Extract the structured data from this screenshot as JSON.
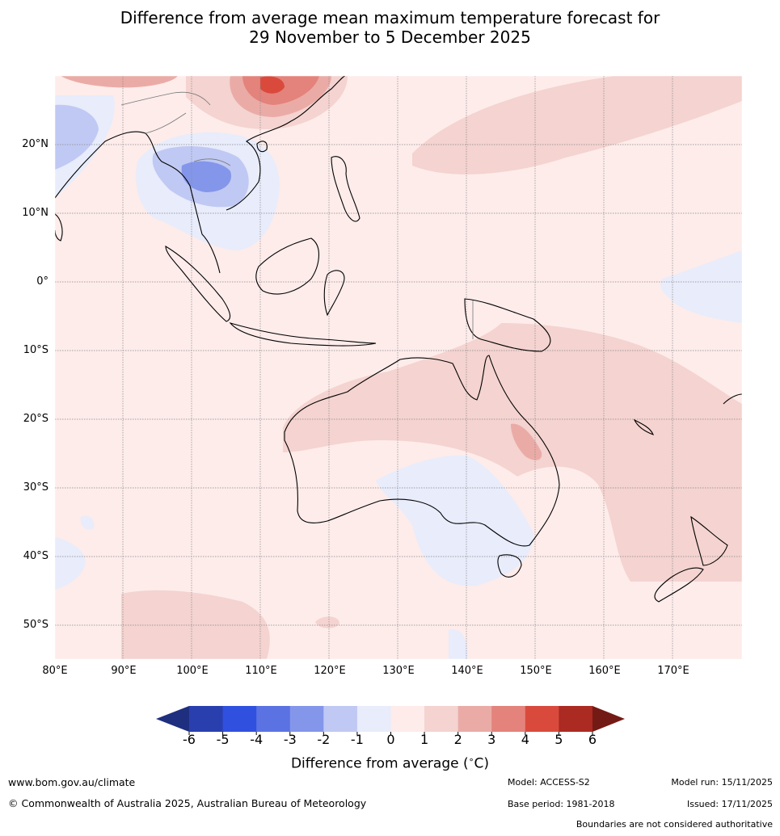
{
  "title": {
    "line1": "Difference from average mean maximum temperature forecast for",
    "line2": "29 November to 5 December 2025"
  },
  "map": {
    "lon_labels": [
      "80°E",
      "90°E",
      "100°E",
      "110°E",
      "120°E",
      "130°E",
      "140°E",
      "150°E",
      "160°E",
      "170°E"
    ],
    "lat_labels": [
      "20°N",
      "10°N",
      "0°",
      "10°S",
      "20°S",
      "30°S",
      "40°S",
      "50°S"
    ]
  },
  "colorbar": {
    "tick_labels": [
      "-6",
      "-5",
      "-4",
      "-3",
      "-2",
      "-1",
      "0",
      "1",
      "2",
      "3",
      "4",
      "5",
      "6"
    ],
    "colors": [
      "#1f2f7f",
      "#2a3fae",
      "#3050e0",
      "#5a72e2",
      "#8496ea",
      "#c0c9f3",
      "#e8ecfb",
      "#fdecea",
      "#f4d3d0",
      "#eaaba6",
      "#e3837b",
      "#d94a3d",
      "#ab2a22",
      "#741a14"
    ],
    "label_prefix": "Difference from average (",
    "label_unit_sup": "∘",
    "label_unit": "C)"
  },
  "footer": {
    "website": "www.bom.gov.au/climate",
    "copyright": "© Commonwealth of Australia 2025, Australian Bureau of Meteorology",
    "model": "Model: ACCESS-S2",
    "base_period": "Base period: 1981-2018",
    "model_run": "Model run: 15/11/2025",
    "issued": "Issued: 17/11/2025",
    "disclaimer": "Boundaries are not considered authoritative"
  }
}
